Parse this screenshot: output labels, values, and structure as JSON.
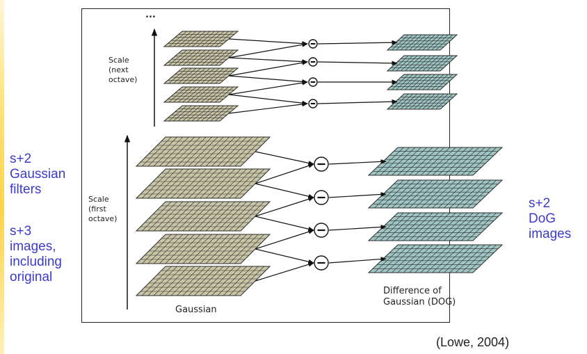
{
  "left_notes": {
    "filters": "s+2\nGaussian\nfilters",
    "images": "s+3\nimages,\nincluding\noriginal"
  },
  "right_note": "s+2\nDoG\nimages",
  "figure": {
    "ellipsis": "...",
    "scale_next_octave": "Scale\n(next\noctave)",
    "scale_first_octave": "Scale\n(first\noctave)",
    "gaussian_label": "Gaussian",
    "dog_label": "Difference of\nGaussian (DOG)",
    "minus_symbol": "−",
    "colors": {
      "gaussian_grid": "#c9c6a8",
      "dog_grid": "#9fc6c4",
      "grid_line": "#2a2a2a"
    }
  },
  "citation": "(Lowe, 2004)"
}
